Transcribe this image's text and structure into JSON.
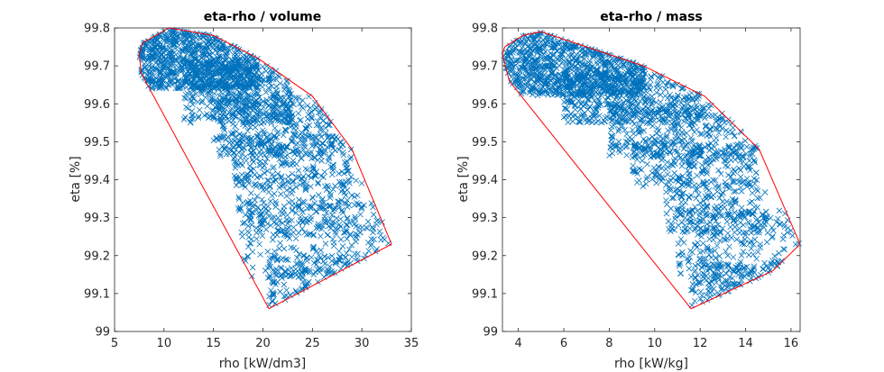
{
  "chart_data": [
    {
      "type": "scatter",
      "title": "eta-rho / volume",
      "xlabel": "rho [kW/dm3]",
      "ylabel": "eta [%]",
      "xlim": [
        5,
        35
      ],
      "ylim": [
        99,
        99.8
      ],
      "xticks": [
        5,
        10,
        15,
        20,
        25,
        30,
        35
      ],
      "yticks": [
        99,
        99.1,
        99.2,
        99.3,
        99.4,
        99.5,
        99.6,
        99.7,
        99.8
      ],
      "xtick_labels": [
        "5",
        "10",
        "15",
        "20",
        "25",
        "30",
        "35"
      ],
      "ytick_labels": [
        "99",
        "99.1",
        "99.2",
        "99.3",
        "99.4",
        "99.5",
        "99.6",
        "99.7",
        "99.8"
      ],
      "marker": "x",
      "marker_color": "#0072BD",
      "hull_color": "#FF0000",
      "grid": false,
      "hull": [
        [
          7.5,
          99.73
        ],
        [
          7.7,
          99.68
        ],
        [
          20.6,
          99.06
        ],
        [
          33,
          99.23
        ],
        [
          29,
          99.48
        ],
        [
          25,
          99.62
        ],
        [
          19.5,
          99.72
        ],
        [
          15,
          99.78
        ],
        [
          10.5,
          99.8
        ],
        [
          7.8,
          99.76
        ]
      ],
      "clusters": [
        {
          "x": [
            7.5,
            19.5
          ],
          "y": [
            99.64,
            99.8
          ],
          "n": 850
        },
        {
          "x": [
            12,
            23
          ],
          "y": [
            99.55,
            99.7
          ],
          "n": 420
        },
        {
          "x": [
            15,
            27
          ],
          "y": [
            99.46,
            99.62
          ],
          "n": 320
        },
        {
          "x": [
            17,
            29
          ],
          "y": [
            99.38,
            99.52
          ],
          "n": 260
        },
        {
          "x": [
            17.5,
            30
          ],
          "y": [
            99.25,
            99.4
          ],
          "n": 200
        },
        {
          "x": [
            18,
            33
          ],
          "y": [
            99.14,
            99.34
          ],
          "n": 220
        },
        {
          "x": [
            20.6,
            31
          ],
          "y": [
            99.06,
            99.2
          ],
          "n": 120
        }
      ]
    },
    {
      "type": "scatter",
      "title": "eta-rho / mass",
      "xlabel": "rho [kW/kg]",
      "ylabel": "eta [%]",
      "xlim": [
        3.3,
        16.4
      ],
      "ylim": [
        99,
        99.8
      ],
      "xticks": [
        4,
        6,
        8,
        10,
        12,
        14,
        16
      ],
      "yticks": [
        99,
        99.1,
        99.2,
        99.3,
        99.4,
        99.5,
        99.6,
        99.7,
        99.8
      ],
      "xtick_labels": [
        "4",
        "6",
        "8",
        "10",
        "12",
        "14",
        "16"
      ],
      "ytick_labels": [
        "99",
        "99.1",
        "99.2",
        "99.3",
        "99.4",
        "99.5",
        "99.6",
        "99.7",
        "99.8"
      ],
      "marker": "x",
      "marker_color": "#0072BD",
      "hull_color": "#FF0000",
      "grid": false,
      "hull": [
        [
          3.3,
          99.73
        ],
        [
          3.6,
          99.66
        ],
        [
          11.6,
          99.06
        ],
        [
          15.2,
          99.16
        ],
        [
          16.4,
          99.23
        ],
        [
          14.6,
          99.48
        ],
        [
          12.2,
          99.62
        ],
        [
          9.5,
          99.7
        ],
        [
          5,
          99.79
        ],
        [
          4.2,
          99.78
        ],
        [
          3.4,
          99.75
        ]
      ],
      "clusters": [
        {
          "x": [
            3.3,
            9.6
          ],
          "y": [
            99.62,
            99.79
          ],
          "n": 850
        },
        {
          "x": [
            6,
            12
          ],
          "y": [
            99.55,
            99.68
          ],
          "n": 420
        },
        {
          "x": [
            8,
            14
          ],
          "y": [
            99.46,
            99.6
          ],
          "n": 320
        },
        {
          "x": [
            9,
            14.5
          ],
          "y": [
            99.38,
            99.5
          ],
          "n": 250
        },
        {
          "x": [
            10.5,
            15
          ],
          "y": [
            99.26,
            99.4
          ],
          "n": 200
        },
        {
          "x": [
            11,
            16.4
          ],
          "y": [
            99.14,
            99.32
          ],
          "n": 220
        },
        {
          "x": [
            11.6,
            15.5
          ],
          "y": [
            99.06,
            99.18
          ],
          "n": 120
        }
      ]
    }
  ]
}
